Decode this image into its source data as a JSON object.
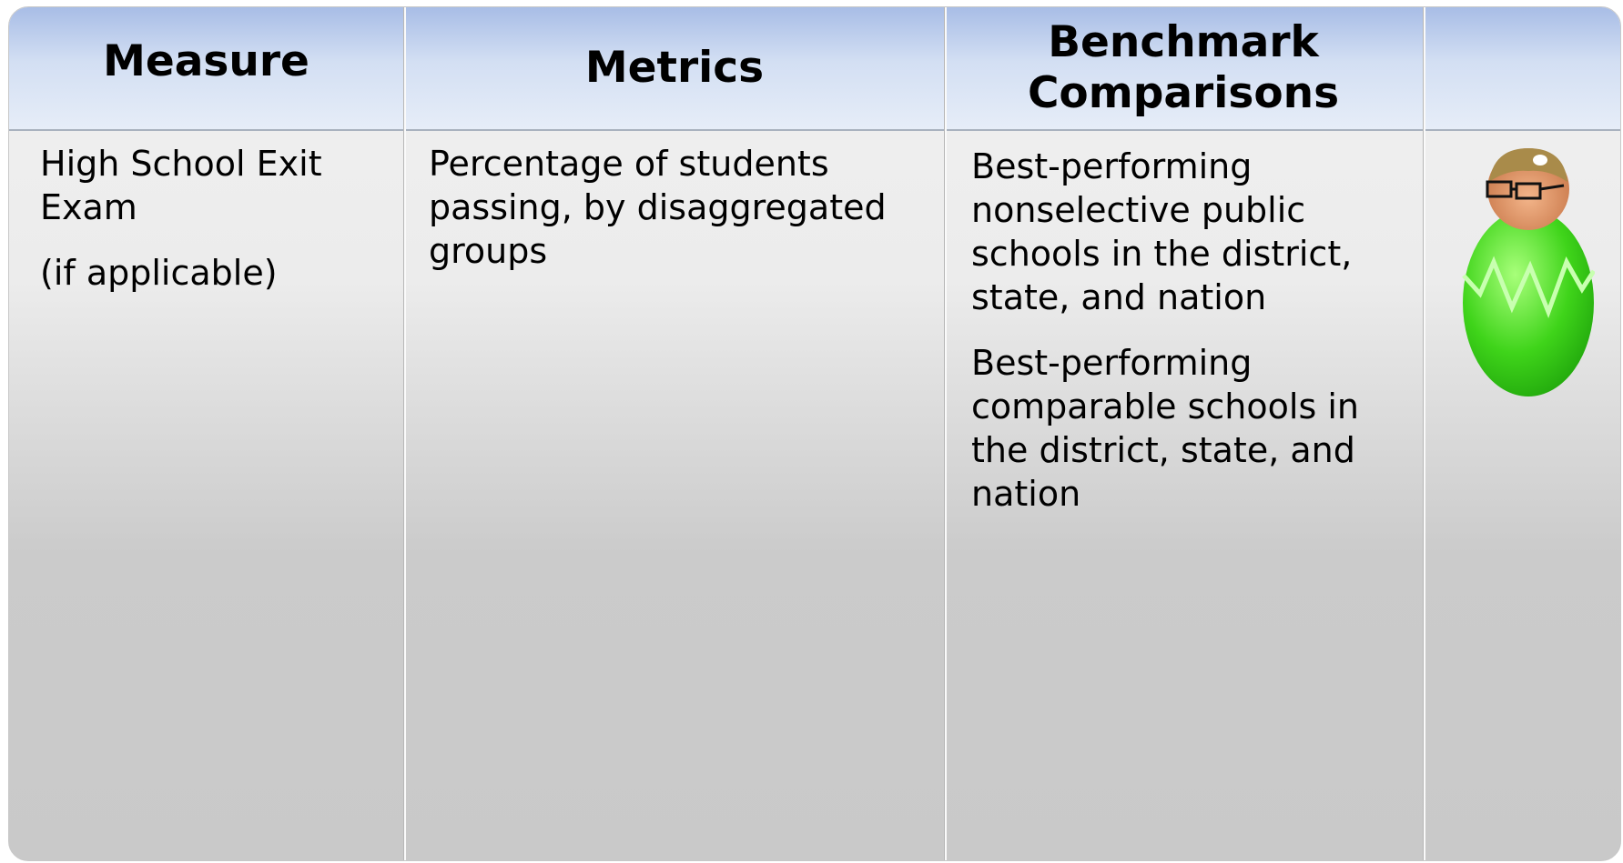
{
  "table": {
    "headers": [
      "Measure",
      "Metrics",
      "Benchmark Comparisons"
    ],
    "rows": [
      [
        [
          "High School Exit Exam",
          "(if applicable)"
        ],
        [
          "Percentage of students passing, by disaggregated groups"
        ],
        [
          "Best-performing nonselective public schools in the district, state, and nation",
          "Best-performing comparable schools in the district, state, and nation"
        ]
      ]
    ]
  }
}
